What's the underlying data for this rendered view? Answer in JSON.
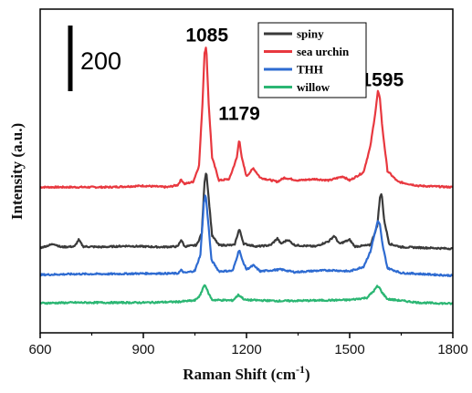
{
  "chart_data": {
    "type": "line",
    "xlabel": "Raman Shift (cm",
    "xlabel_sup": "-1",
    "xlabel_end": ")",
    "ylabel": "Intensity (a.u.)",
    "xlim": [
      600,
      1800
    ],
    "xticks": [
      "600",
      "900",
      "1200",
      "1500",
      "1800"
    ],
    "y_ticks_shown": false,
    "scale_bar": {
      "label": "200",
      "value": 200
    },
    "legend_position": "top-right",
    "peak_labels": [
      {
        "text": "1085",
        "x": 1085,
        "y": 1080
      },
      {
        "text": "1179",
        "x": 1179,
        "y": 790
      },
      {
        "text": "1595",
        "x": 1595,
        "y": 915
      }
    ],
    "series": [
      {
        "name": "spiny",
        "color": "#3a3a3a",
        "baseline": 305,
        "points": [
          [
            600,
            315
          ],
          [
            640,
            330
          ],
          [
            660,
            318
          ],
          [
            700,
            320
          ],
          [
            712,
            345
          ],
          [
            725,
            320
          ],
          [
            780,
            318
          ],
          [
            850,
            322
          ],
          [
            950,
            318
          ],
          [
            1000,
            320
          ],
          [
            1010,
            345
          ],
          [
            1020,
            320
          ],
          [
            1055,
            325
          ],
          [
            1070,
            370
          ],
          [
            1078,
            560
          ],
          [
            1083,
            600
          ],
          [
            1090,
            500
          ],
          [
            1100,
            360
          ],
          [
            1120,
            325
          ],
          [
            1165,
            325
          ],
          [
            1179,
            385
          ],
          [
            1192,
            330
          ],
          [
            1230,
            320
          ],
          [
            1270,
            325
          ],
          [
            1290,
            350
          ],
          [
            1300,
            330
          ],
          [
            1320,
            345
          ],
          [
            1340,
            325
          ],
          [
            1400,
            320
          ],
          [
            1440,
            340
          ],
          [
            1455,
            360
          ],
          [
            1470,
            330
          ],
          [
            1500,
            345
          ],
          [
            1515,
            320
          ],
          [
            1560,
            325
          ],
          [
            1580,
            395
          ],
          [
            1588,
            500
          ],
          [
            1593,
            520
          ],
          [
            1600,
            420
          ],
          [
            1615,
            330
          ],
          [
            1650,
            318
          ],
          [
            1800,
            312
          ]
        ]
      },
      {
        "name": "sea urchin",
        "color": "#e8383f",
        "baseline": 530,
        "points": [
          [
            600,
            540
          ],
          [
            700,
            540
          ],
          [
            800,
            540
          ],
          [
            900,
            545
          ],
          [
            970,
            540
          ],
          [
            1000,
            548
          ],
          [
            1010,
            568
          ],
          [
            1020,
            552
          ],
          [
            1045,
            560
          ],
          [
            1062,
            620
          ],
          [
            1072,
            850
          ],
          [
            1078,
            1040
          ],
          [
            1083,
            1060
          ],
          [
            1090,
            850
          ],
          [
            1100,
            650
          ],
          [
            1120,
            565
          ],
          [
            1150,
            570
          ],
          [
            1172,
            650
          ],
          [
            1179,
            720
          ],
          [
            1186,
            650
          ],
          [
            1200,
            580
          ],
          [
            1220,
            610
          ],
          [
            1240,
            575
          ],
          [
            1290,
            560
          ],
          [
            1310,
            575
          ],
          [
            1350,
            565
          ],
          [
            1400,
            570
          ],
          [
            1440,
            565
          ],
          [
            1480,
            580
          ],
          [
            1500,
            565
          ],
          [
            1540,
            595
          ],
          [
            1560,
            690
          ],
          [
            1575,
            820
          ],
          [
            1582,
            895
          ],
          [
            1588,
            870
          ],
          [
            1595,
            760
          ],
          [
            1610,
            600
          ],
          [
            1640,
            560
          ],
          [
            1700,
            545
          ],
          [
            1800,
            540
          ]
        ]
      },
      {
        "name": "THH",
        "color": "#2e6bd1",
        "baseline": 205,
        "points": [
          [
            600,
            215
          ],
          [
            700,
            218
          ],
          [
            800,
            218
          ],
          [
            900,
            220
          ],
          [
            1000,
            220
          ],
          [
            1010,
            232
          ],
          [
            1020,
            222
          ],
          [
            1050,
            230
          ],
          [
            1066,
            290
          ],
          [
            1076,
            480
          ],
          [
            1081,
            515
          ],
          [
            1088,
            420
          ],
          [
            1098,
            270
          ],
          [
            1120,
            228
          ],
          [
            1160,
            230
          ],
          [
            1172,
            280
          ],
          [
            1179,
            310
          ],
          [
            1186,
            275
          ],
          [
            1200,
            235
          ],
          [
            1220,
            250
          ],
          [
            1240,
            228
          ],
          [
            1300,
            235
          ],
          [
            1340,
            225
          ],
          [
            1400,
            230
          ],
          [
            1450,
            232
          ],
          [
            1500,
            228
          ],
          [
            1540,
            245
          ],
          [
            1560,
            300
          ],
          [
            1575,
            380
          ],
          [
            1582,
            415
          ],
          [
            1588,
            400
          ],
          [
            1595,
            330
          ],
          [
            1610,
            240
          ],
          [
            1650,
            222
          ],
          [
            1800,
            212
          ]
        ]
      },
      {
        "name": "willow",
        "color": "#2bb673",
        "baseline": 105,
        "points": [
          [
            600,
            110
          ],
          [
            700,
            112
          ],
          [
            800,
            112
          ],
          [
            900,
            112
          ],
          [
            1000,
            115
          ],
          [
            1050,
            120
          ],
          [
            1066,
            140
          ],
          [
            1075,
            172
          ],
          [
            1080,
            178
          ],
          [
            1088,
            150
          ],
          [
            1100,
            122
          ],
          [
            1160,
            120
          ],
          [
            1176,
            140
          ],
          [
            1182,
            136
          ],
          [
            1195,
            122
          ],
          [
            1300,
            118
          ],
          [
            1400,
            120
          ],
          [
            1500,
            122
          ],
          [
            1550,
            130
          ],
          [
            1570,
            155
          ],
          [
            1580,
            172
          ],
          [
            1586,
            168
          ],
          [
            1595,
            148
          ],
          [
            1610,
            125
          ],
          [
            1700,
            112
          ],
          [
            1800,
            108
          ]
        ]
      }
    ]
  }
}
